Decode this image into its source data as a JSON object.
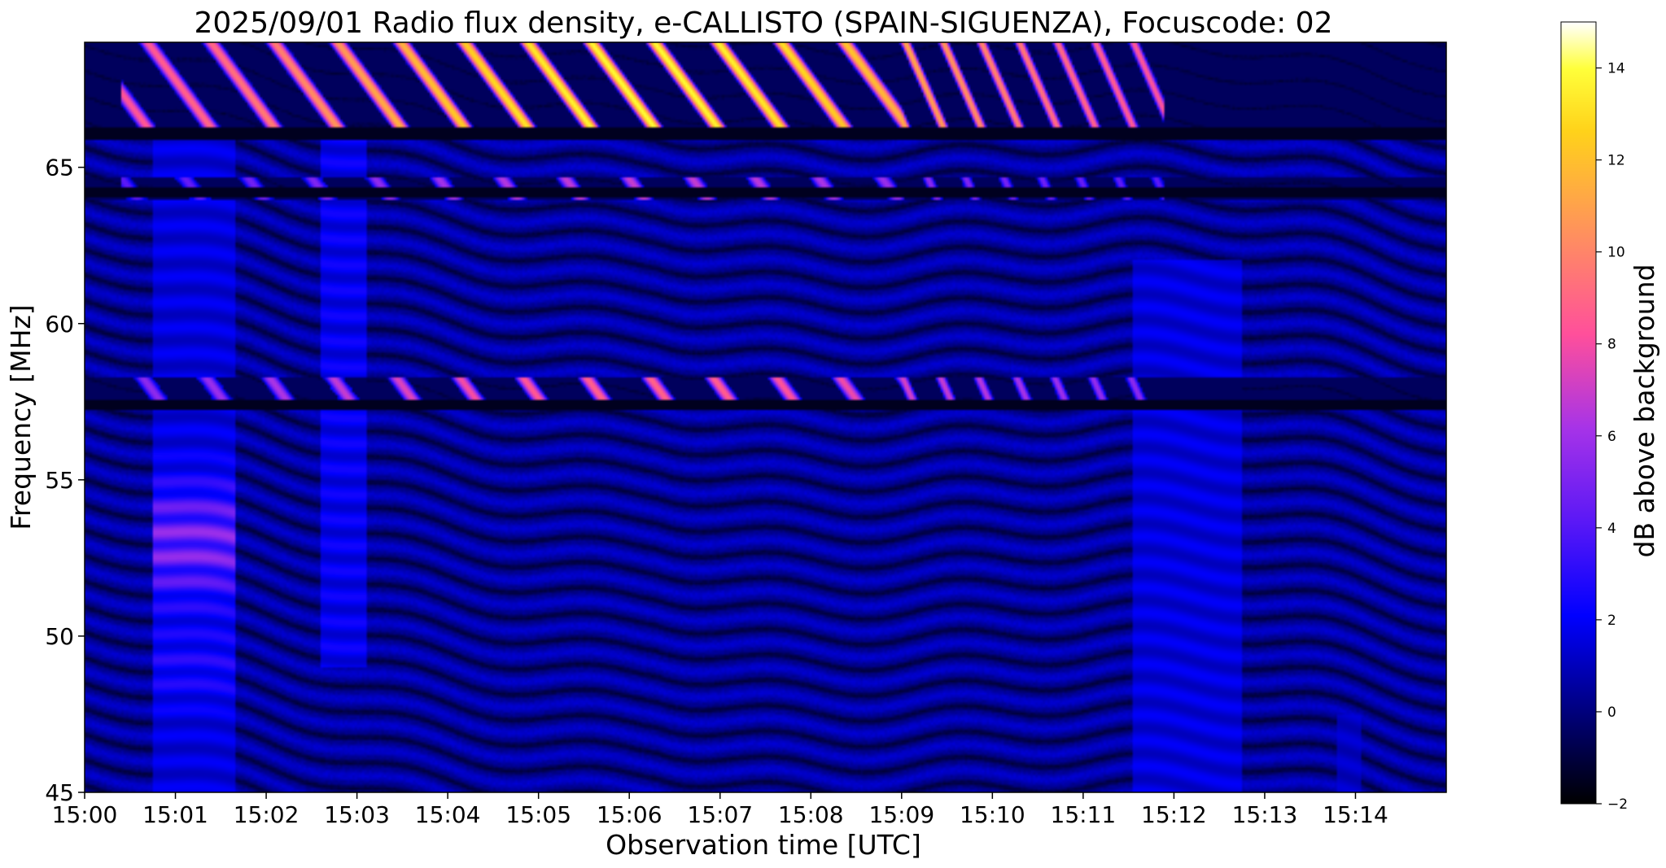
{
  "chart_data": {
    "type": "heatmap",
    "title": "2025/09/01  Radio flux density, e-CALLISTO (SPAIN-SIGUENZA), Focuscode: 02",
    "xlabel": "Observation time [UTC]",
    "ylabel": "Frequency [MHz]",
    "x_ticks": [
      "15:00",
      "15:01",
      "15:02",
      "15:03",
      "15:04",
      "15:05",
      "15:06",
      "15:07",
      "15:08",
      "15:09",
      "15:10",
      "15:11",
      "15:12",
      "15:13",
      "15:14"
    ],
    "x_range_minutes": [
      0,
      15
    ],
    "y_ticks": [
      45,
      50,
      55,
      60,
      65
    ],
    "ylim": [
      45,
      69
    ],
    "colorbar": {
      "label": "dB above background",
      "range": [
        -2,
        15
      ],
      "ticks": [
        -2,
        0,
        2,
        4,
        6,
        8,
        10,
        12,
        14
      ],
      "colormap": "gnuplot2",
      "colors": [
        "#000000",
        "#00007f",
        "#0000ff",
        "#7f2ef0",
        "#ff4f9b",
        "#ffa15a",
        "#ffe000",
        "#ffffff"
      ]
    },
    "features": {
      "rfi_bands_mhz": [
        {
          "freq_min": 66.2,
          "freq_max": 69.0,
          "peak_db": 14
        },
        {
          "freq_min": 64.0,
          "freq_max": 64.7,
          "peak_db": 7
        },
        {
          "freq_min": 57.3,
          "freq_max": 58.3,
          "peak_db": 9
        }
      ],
      "broadband_enhancements": [
        {
          "start_min": 0.75,
          "end_min": 1.65,
          "freq_min": 45,
          "freq_max": 66,
          "peak_db": 6,
          "peak_freq_mhz": 53
        },
        {
          "start_min": 2.6,
          "end_min": 3.1,
          "freq_min": 49,
          "freq_max": 66,
          "peak_db": 2.5
        },
        {
          "start_min": 11.55,
          "end_min": 12.75,
          "freq_min": 45,
          "freq_max": 62,
          "peak_db": 2
        },
        {
          "start_min": 13.8,
          "end_min": 14.05,
          "freq_min": 45,
          "freq_max": 47.5,
          "peak_db": 1.5
        }
      ],
      "quiet_rows_mhz": [
        57.4,
        64.2,
        66.1
      ]
    }
  }
}
